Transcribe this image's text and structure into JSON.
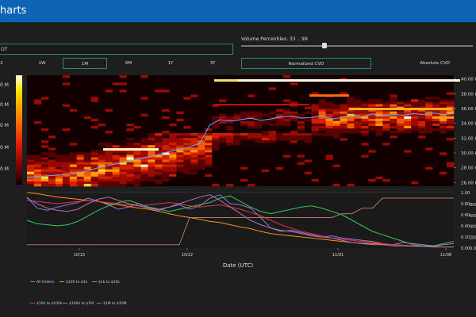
{
  "header": {
    "title": "harts"
  },
  "controls": {
    "symbol_value": "OT",
    "percentile_label": "Volume Percentiles: 33 .. 99",
    "percentile_range": [
      33,
      99
    ],
    "timeframes": [
      "2",
      "1W",
      "1M",
      "6M",
      "1Y",
      "3Y"
    ],
    "active_timeframe": "1M",
    "cvd_normalized": "Normalized CVD",
    "cvd_absolute": "Absolute CVD"
  },
  "colorbar": {
    "ticks": [
      "0 M",
      "0 M",
      "0 M",
      "0 M",
      "0 M"
    ]
  },
  "chart_data": [
    {
      "type": "heatmap",
      "y_ticks": [
        "40.00 k",
        "38.00 k",
        "36.00 k",
        "34.00 k",
        "32.00 k",
        "30.00 k",
        "28.00 k",
        "26.00 k"
      ],
      "ylim": [
        25500,
        40500
      ],
      "price_line": [
        26700,
        26800,
        26900,
        27000,
        27100,
        27300,
        27600,
        28000,
        28300,
        28600,
        28900,
        29200,
        29500,
        29800,
        30200,
        30500,
        30800,
        31300,
        33800,
        34500,
        34300,
        34500,
        34700,
        34400,
        34600,
        34900,
        35000,
        34700,
        34800,
        35000,
        34600,
        34800,
        35200,
        34900,
        35300,
        35000,
        35200,
        35100,
        35300,
        35200,
        35400,
        35200,
        35300
      ]
    },
    {
      "type": "line",
      "x_ticks": [
        "10/15",
        "10/22",
        "11/01",
        "11/08"
      ],
      "xlabel": "Date (UTC)",
      "y_right_ticks": [
        "1.00",
        "0.80",
        "0.60",
        "0.40",
        "0.20",
        "0.00"
      ],
      "y_far_right_ticks": [
        "800.00 m",
        "600.00 m",
        "400.00 m",
        "200.00 m",
        "0.00"
      ],
      "ylim": [
        0,
        1
      ],
      "series": [
        {
          "name": "All Orders",
          "color": "#8a78e0",
          "values": [
            0.92,
            0.72,
            0.68,
            0.74,
            0.78,
            0.82,
            0.9,
            0.85,
            0.78,
            0.7,
            0.74,
            0.8,
            0.72,
            0.68,
            0.74,
            0.78,
            0.7,
            0.76,
            0.9,
            0.96,
            0.8,
            0.78,
            0.72,
            0.55,
            0.36,
            0.3,
            0.32,
            0.28,
            0.24,
            0.2,
            0.22,
            0.18,
            0.16,
            0.14,
            0.12,
            0.08,
            0.06,
            0.1,
            0.08,
            0.06,
            0.04,
            0.08,
            0.12
          ]
        },
        {
          "name": "$100 to $1k",
          "color": "#ff8c1a",
          "values": [
            1.0,
            0.98,
            0.95,
            0.92,
            0.9,
            0.88,
            0.86,
            0.84,
            0.8,
            0.78,
            0.75,
            0.72,
            0.7,
            0.66,
            0.62,
            0.58,
            0.55,
            0.52,
            0.48,
            0.46,
            0.42,
            0.38,
            0.35,
            0.3,
            0.26,
            0.24,
            0.22,
            0.2,
            0.18,
            0.16,
            0.14,
            0.12,
            0.1,
            0.09,
            0.08,
            0.07,
            0.06,
            0.05,
            0.04,
            0.04,
            0.03,
            0.02,
            0.02
          ]
        },
        {
          "name": "$1k to $10k",
          "color": "#3cc45a",
          "values": [
            0.5,
            0.44,
            0.42,
            0.4,
            0.42,
            0.48,
            0.58,
            0.68,
            0.76,
            0.82,
            0.86,
            0.8,
            0.74,
            0.7,
            0.66,
            0.7,
            0.74,
            0.78,
            0.82,
            0.9,
            0.94,
            0.84,
            0.74,
            0.66,
            0.62,
            0.66,
            0.7,
            0.74,
            0.76,
            0.72,
            0.66,
            0.6,
            0.5,
            0.4,
            0.3,
            0.24,
            0.18,
            0.12,
            0.06,
            0.04,
            0.04,
            0.06,
            0.08
          ]
        },
        {
          "name": "$10k to $100k",
          "color": "#e8304a",
          "values": [
            0.86,
            0.84,
            0.82,
            0.8,
            0.82,
            0.84,
            0.86,
            0.84,
            0.82,
            0.8,
            0.78,
            0.76,
            0.78,
            0.8,
            0.82,
            0.8,
            0.76,
            0.74,
            0.76,
            0.78,
            0.74,
            0.7,
            0.64,
            0.58,
            0.5,
            0.42,
            0.36,
            0.3,
            0.26,
            0.22,
            0.18,
            0.16,
            0.14,
            0.12,
            0.1,
            0.08,
            0.06,
            0.05,
            0.04,
            0.03,
            0.02,
            0.02,
            0.02
          ]
        },
        {
          "name": "$100k to $1M",
          "color": "#b070b0",
          "values": [
            0.9,
            0.8,
            0.72,
            0.68,
            0.66,
            0.7,
            0.8,
            0.88,
            0.92,
            0.86,
            0.8,
            0.76,
            0.72,
            0.7,
            0.74,
            0.8,
            0.86,
            0.92,
            0.96,
            0.86,
            0.74,
            0.62,
            0.5,
            0.42,
            0.36,
            0.32,
            0.3,
            0.26,
            0.22,
            0.2,
            0.18,
            0.14,
            0.1,
            0.08,
            0.06,
            0.06,
            0.04,
            0.04,
            0.03,
            0.03,
            0.02,
            0.02,
            0.02
          ]
        },
        {
          "name": "$1M to $10M",
          "color": "#b07a66",
          "values": [
            0.06,
            0.06,
            0.06,
            0.06,
            0.06,
            0.06,
            0.06,
            0.06,
            0.06,
            0.06,
            0.06,
            0.06,
            0.06,
            0.06,
            0.06,
            0.06,
            0.55,
            0.55,
            0.55,
            0.55,
            0.55,
            0.55,
            0.55,
            0.55,
            0.55,
            0.55,
            0.55,
            0.55,
            0.55,
            0.55,
            0.55,
            0.62,
            0.62,
            0.72,
            0.72,
            0.9,
            0.9,
            0.9,
            0.9,
            0.9,
            0.9,
            0.9,
            0.9
          ]
        }
      ]
    }
  ]
}
